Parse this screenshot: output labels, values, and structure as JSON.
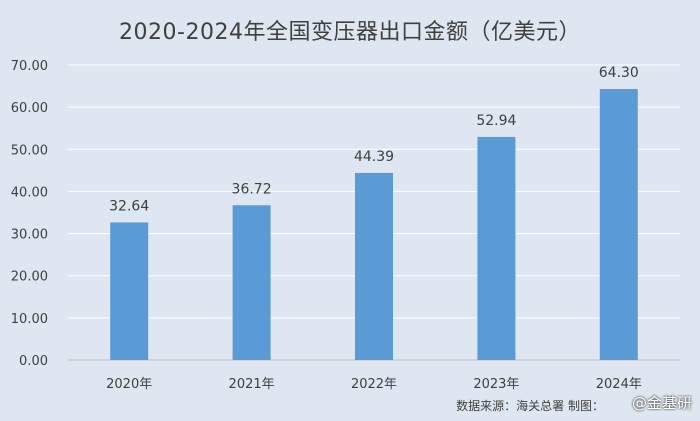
{
  "chart_data": {
    "type": "bar",
    "title": "2020-2024年全国变压器出口金额（亿美元）",
    "categories": [
      "2020年",
      "2021年",
      "2022年",
      "2023年",
      "2024年"
    ],
    "values": [
      32.64,
      36.72,
      44.39,
      52.94,
      64.3
    ],
    "data_labels": [
      "32.64",
      "36.72",
      "44.39",
      "52.94",
      "64.30"
    ],
    "y_ticks": [
      "0.00",
      "10.00",
      "20.00",
      "30.00",
      "40.00",
      "50.00",
      "60.00",
      "70.00"
    ],
    "ylim": [
      0,
      70
    ],
    "grid": true,
    "legend": "none",
    "bar_color": "#5b9bd5"
  },
  "footer": {
    "source": "数据来源：海关总署   制图：",
    "watermark": "@金基研"
  }
}
